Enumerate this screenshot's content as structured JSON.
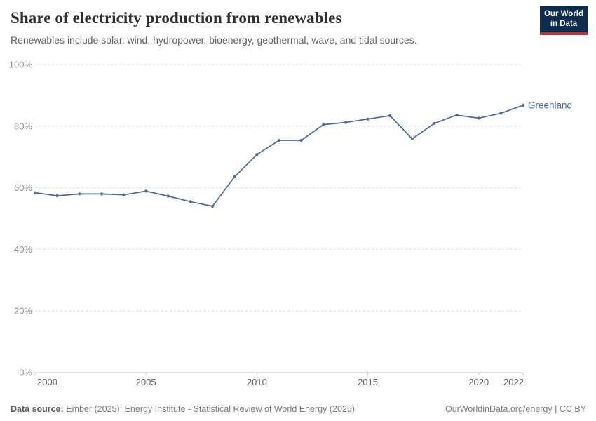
{
  "header": {
    "title": "Share of electricity production from renewables",
    "subtitle": "Renewables include solar, wind, hydropower, bioenergy, geothermal, wave, and tidal sources.",
    "logo_line1": "Our World",
    "logo_line2": "in Data"
  },
  "chart_data": {
    "type": "line",
    "title": "Share of electricity production from renewables",
    "subtitle": "Renewables include solar, wind, hydropower, bioenergy, geothermal, wave, and tidal sources.",
    "x": [
      2000,
      2001,
      2002,
      2003,
      2004,
      2005,
      2006,
      2007,
      2008,
      2009,
      2010,
      2011,
      2012,
      2013,
      2014,
      2015,
      2016,
      2017,
      2018,
      2019,
      2020,
      2021,
      2022
    ],
    "series": [
      {
        "name": "Greenland",
        "color": "#4C6A9C",
        "values": [
          58.4,
          57.4,
          58.0,
          58.0,
          57.7,
          58.9,
          57.3,
          55.5,
          54.0,
          63.6,
          70.8,
          75.4,
          75.4,
          80.5,
          81.2,
          82.3,
          83.4,
          75.9,
          80.9,
          83.6,
          82.6,
          84.2,
          86.8
        ]
      }
    ],
    "xlim": [
      2000,
      2022
    ],
    "ylim": [
      0,
      100
    ],
    "x_ticks": [
      2000,
      2005,
      2010,
      2015,
      2020,
      2022
    ],
    "y_ticks": [
      0,
      20,
      40,
      60,
      80,
      100
    ],
    "y_suffix": "%",
    "grid": "horizontal-dashed",
    "legend_position": "line-end-label",
    "end_label": "Greenland"
  },
  "footer": {
    "source_label": "Data source:",
    "source_text": " Ember (2025); Energy Institute - Statistical Review of World Energy (2025)",
    "credit": "OurWorldinData.org/energy | CC BY"
  }
}
